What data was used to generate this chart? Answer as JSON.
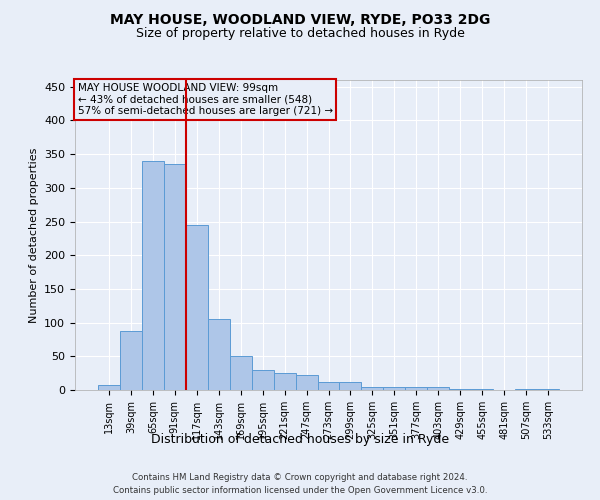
{
  "title": "MAY HOUSE, WOODLAND VIEW, RYDE, PO33 2DG",
  "subtitle": "Size of property relative to detached houses in Ryde",
  "xlabel": "Distribution of detached houses by size in Ryde",
  "ylabel": "Number of detached properties",
  "footer1": "Contains HM Land Registry data © Crown copyright and database right 2024.",
  "footer2": "Contains public sector information licensed under the Open Government Licence v3.0.",
  "annotation_line1": "MAY HOUSE WOODLAND VIEW: 99sqm",
  "annotation_line2": "← 43% of detached houses are smaller (548)",
  "annotation_line3": "57% of semi-detached houses are larger (721) →",
  "bar_categories": [
    "13sqm",
    "39sqm",
    "65sqm",
    "91sqm",
    "117sqm",
    "143sqm",
    "169sqm",
    "195sqm",
    "221sqm",
    "247sqm",
    "273sqm",
    "299sqm",
    "325sqm",
    "351sqm",
    "377sqm",
    "403sqm",
    "429sqm",
    "455sqm",
    "481sqm",
    "507sqm",
    "533sqm"
  ],
  "bar_values": [
    8,
    88,
    340,
    335,
    245,
    105,
    50,
    30,
    25,
    22,
    12,
    12,
    5,
    5,
    4,
    4,
    1,
    1,
    0,
    1,
    1
  ],
  "bar_color": "#aec6e8",
  "bar_edge_color": "#5b9bd5",
  "vline_color": "#cc0000",
  "vline_x": 3.5,
  "ylim": [
    0,
    460
  ],
  "yticks": [
    0,
    50,
    100,
    150,
    200,
    250,
    300,
    350,
    400,
    450
  ],
  "background_color": "#e8eef8",
  "annotation_box_color": "#cc0000",
  "grid_color": "#ffffff",
  "title_fontsize": 10,
  "subtitle_fontsize": 9
}
